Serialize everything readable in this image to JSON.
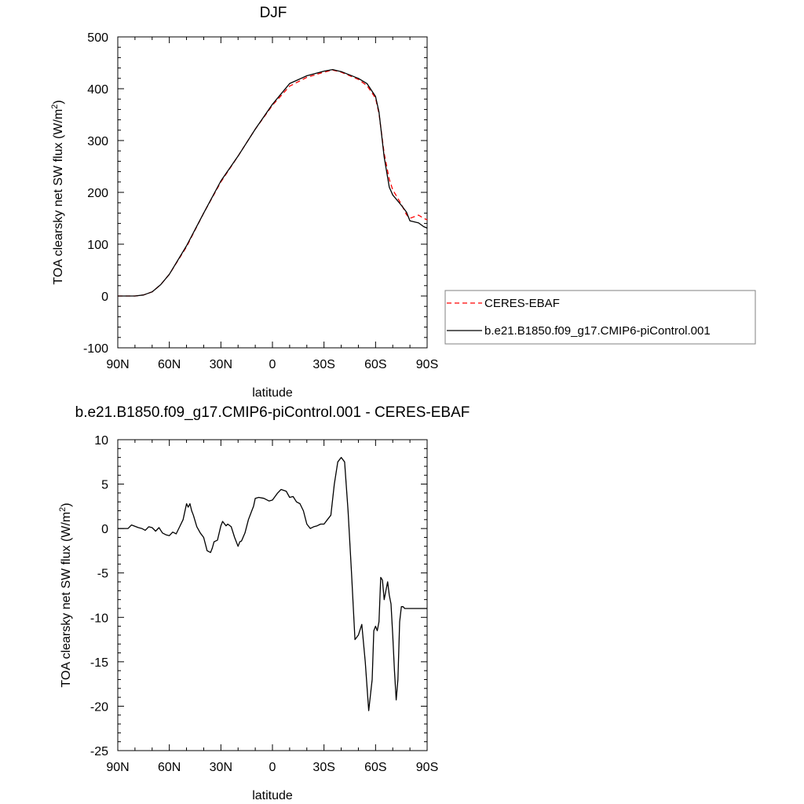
{
  "chart_data": [
    {
      "type": "line",
      "title": "DJF",
      "xlabel": "latitude",
      "ylabel": "TOA clearsky net SW flux (W/m",
      "ylabel_sup": "2",
      "ylabel_end": ")",
      "xlim": [
        90,
        -90
      ],
      "ylim": [
        -100,
        500
      ],
      "x_ticks": [
        {
          "value": 90,
          "label": "90N"
        },
        {
          "value": 60,
          "label": "60N"
        },
        {
          "value": 30,
          "label": "30N"
        },
        {
          "value": 0,
          "label": "0"
        },
        {
          "value": -30,
          "label": "30S"
        },
        {
          "value": -60,
          "label": "60S"
        },
        {
          "value": -90,
          "label": "90S"
        }
      ],
      "y_ticks": [
        -100,
        0,
        100,
        200,
        300,
        400,
        500
      ],
      "grid": false,
      "legend_position": "right",
      "series": [
        {
          "name": "CERES-EBAF",
          "color": "#ff0000",
          "dash": "dashed",
          "x": [
            90,
            80,
            75,
            70,
            65,
            60,
            50,
            40,
            30,
            20,
            10,
            0,
            -10,
            -20,
            -30,
            -35,
            -40,
            -50,
            -55,
            -60,
            -62,
            -65,
            -68,
            -70,
            -75,
            -78,
            -80,
            -85,
            -88,
            -90
          ],
          "y": [
            0,
            0,
            2,
            8,
            22,
            42,
            95,
            160,
            220,
            270,
            322,
            368,
            405,
            422,
            432,
            436,
            432,
            418,
            406,
            382,
            352,
            275,
            225,
            205,
            177,
            157,
            150,
            156,
            150,
            147
          ]
        },
        {
          "name": "b.e21.B1850.f09_g17.CMIP6-piControl.001",
          "color": "#000000",
          "dash": "solid",
          "x": [
            90,
            80,
            75,
            70,
            65,
            60,
            50,
            40,
            30,
            20,
            10,
            0,
            -10,
            -20,
            -30,
            -35,
            -40,
            -50,
            -55,
            -60,
            -62,
            -65,
            -68,
            -70,
            -75,
            -78,
            -80,
            -85,
            -88,
            -90
          ],
          "y": [
            0,
            0,
            2,
            8,
            22,
            42,
            97,
            160,
            222,
            270,
            322,
            370,
            410,
            425,
            434,
            437,
            433,
            420,
            410,
            385,
            355,
            268,
            210,
            195,
            175,
            162,
            145,
            141,
            134,
            131
          ]
        }
      ]
    },
    {
      "type": "line",
      "title": "b.e21.B1850.f09_g17.CMIP6-piControl.001 - CERES-EBAF",
      "xlabel": "latitude",
      "ylabel": "TOA clearsky net SW flux (W/m",
      "ylabel_sup": "2",
      "ylabel_end": ")",
      "xlim": [
        90,
        -90
      ],
      "ylim": [
        -25,
        10
      ],
      "x_ticks": [
        {
          "value": 90,
          "label": "90N"
        },
        {
          "value": 60,
          "label": "60N"
        },
        {
          "value": 30,
          "label": "30N"
        },
        {
          "value": 0,
          "label": "0"
        },
        {
          "value": -30,
          "label": "30S"
        },
        {
          "value": -60,
          "label": "60S"
        },
        {
          "value": -90,
          "label": "90S"
        }
      ],
      "y_ticks": [
        -25,
        -20,
        -15,
        -10,
        -5,
        0,
        5,
        10
      ],
      "grid": false,
      "series": [
        {
          "color": "#000000",
          "dash": "solid",
          "x": [
            90,
            84,
            82,
            78,
            76,
            74,
            72,
            70,
            68,
            66,
            64,
            62,
            60,
            58,
            56,
            54,
            52,
            50,
            49,
            48,
            47,
            46,
            44,
            42,
            40,
            38,
            36,
            35,
            34,
            32,
            30,
            29,
            27,
            26,
            24,
            22,
            20,
            19,
            18,
            16,
            14,
            12,
            11,
            10,
            8,
            5,
            2,
            0,
            -3,
            -5,
            -8,
            -10,
            -12,
            -14,
            -16,
            -18,
            -20,
            -22,
            -24,
            -26,
            -28,
            -30,
            -32,
            -34,
            -36,
            -38,
            -40,
            -42,
            -44,
            -46,
            -48,
            -50,
            -52,
            -54,
            -56,
            -58,
            -59,
            -60,
            -61,
            -62,
            -63,
            -64,
            -65,
            -66,
            -67,
            -68,
            -69,
            -70,
            -71,
            -72,
            -73,
            -74,
            -75,
            -76,
            -77,
            -78,
            -79,
            -80,
            -81,
            -82,
            -83,
            -84,
            -85,
            -86,
            -87,
            -88,
            -89,
            -90
          ],
          "y": [
            0,
            0,
            0.4,
            0.1,
            0,
            -0.2,
            0.2,
            0.1,
            -0.3,
            0.1,
            -0.5,
            -0.7,
            -0.8,
            -0.4,
            -0.6,
            0.2,
            1.0,
            2.8,
            2.4,
            2.8,
            2.0,
            1.5,
            0.2,
            -0.5,
            -1.0,
            -2.5,
            -2.7,
            -2.2,
            -1.5,
            -1.3,
            0.3,
            0.8,
            0.3,
            0.5,
            0.2,
            -1.0,
            -2.0,
            -1.5,
            -1.4,
            -0.5,
            1.0,
            2.0,
            2.5,
            3.4,
            3.5,
            3.4,
            3.1,
            3.2,
            4.0,
            4.4,
            4.2,
            3.5,
            3.6,
            3.0,
            2.8,
            2.0,
            0.5,
            0.0,
            0.2,
            0.3,
            0.5,
            0.5,
            1.0,
            1.5,
            5.0,
            7.5,
            8.0,
            7.5,
            2.0,
            -5.0,
            -12.5,
            -12.0,
            -10.8,
            -15.0,
            -20.5,
            -17.0,
            -11.5,
            -11.0,
            -11.5,
            -10.5,
            -5.5,
            -5.8,
            -8.0,
            -7.0,
            -6.0,
            -7.5,
            -8.5,
            -12.0,
            -16.0,
            -19.3,
            -17.0,
            -10.5,
            -8.8,
            -8.8,
            -9.0,
            -9.0,
            -9.0,
            -9.0,
            -9.0,
            -9.0,
            -9.0,
            -9.0,
            -9.0,
            -9.0,
            -9.0,
            -9.0,
            -9.0,
            -9.0
          ]
        }
      ]
    }
  ]
}
